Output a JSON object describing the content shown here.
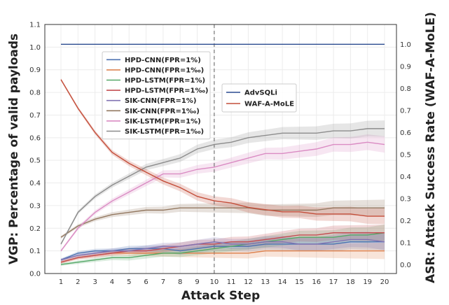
{
  "chart_data": {
    "type": "line",
    "xlabel": "Attack Step",
    "ylabel_left": "VGP: Percentage of valid payloads",
    "ylabel_right": "ASR: Attack Success Rate (WAF-A-MoLE)",
    "x": [
      1,
      2,
      3,
      4,
      5,
      6,
      7,
      8,
      9,
      10,
      11,
      12,
      13,
      14,
      15,
      16,
      17,
      18,
      19,
      20
    ],
    "left_yticks": [
      "0.0",
      "0.1",
      "0.2",
      "0.3",
      "0.4",
      "0.5",
      "0.6",
      "0.7",
      "0.8",
      "0.9",
      "1.0",
      "1.1"
    ],
    "right_yticks": [
      "0.0",
      "0.1",
      "0.2",
      "0.3",
      "0.4",
      "0.5",
      "0.6",
      "0.7",
      "0.8",
      "0.9",
      "1.0"
    ],
    "ylim_left": [
      0,
      1.1
    ],
    "ylim_right": [
      -0.04,
      1.09
    ],
    "vline_x": 10,
    "grid": true,
    "legend_left_placement": "upper-left-center",
    "legend_right_placement": "upper-center",
    "series_left": [
      {
        "name": "HPD-CNN(FPR=1%)",
        "color": "#4c72b0",
        "values": [
          0.06,
          0.09,
          0.1,
          0.1,
          0.11,
          0.11,
          0.11,
          0.1,
          0.11,
          0.12,
          0.12,
          0.12,
          0.13,
          0.13,
          0.13,
          0.13,
          0.13,
          0.14,
          0.14,
          0.14
        ]
      },
      {
        "name": "HPD-CNN(FPR=1‰)",
        "color": "#dd8452",
        "values": [
          0.05,
          0.07,
          0.08,
          0.09,
          0.09,
          0.09,
          0.09,
          0.09,
          0.09,
          0.09,
          0.09,
          0.09,
          0.1,
          0.1,
          0.1,
          0.1,
          0.1,
          0.1,
          0.1,
          0.1
        ]
      },
      {
        "name": "HPD-LSTM(FPR=1%)",
        "color": "#55a868",
        "values": [
          0.04,
          0.05,
          0.06,
          0.07,
          0.07,
          0.08,
          0.09,
          0.09,
          0.1,
          0.11,
          0.12,
          0.13,
          0.14,
          0.15,
          0.16,
          0.16,
          0.16,
          0.17,
          0.17,
          0.18
        ]
      },
      {
        "name": "HPD-LSTM(FPR=1‰)",
        "color": "#c44e52",
        "values": [
          0.05,
          0.07,
          0.08,
          0.09,
          0.1,
          0.1,
          0.11,
          0.12,
          0.13,
          0.13,
          0.14,
          0.14,
          0.15,
          0.16,
          0.17,
          0.17,
          0.18,
          0.18,
          0.18,
          0.18
        ]
      },
      {
        "name": "SIK-CNN(FPR=1%)",
        "color": "#8172b2",
        "values": [
          0.06,
          0.08,
          0.09,
          0.1,
          0.1,
          0.11,
          0.12,
          0.12,
          0.13,
          0.14,
          0.13,
          0.13,
          0.14,
          0.14,
          0.13,
          0.13,
          0.14,
          0.15,
          0.15,
          0.14
        ]
      },
      {
        "name": "SIK-CNN(FPR=1‰)",
        "color": "#937860",
        "values": [
          0.16,
          0.21,
          0.24,
          0.26,
          0.27,
          0.28,
          0.28,
          0.29,
          0.29,
          0.29,
          0.29,
          0.29,
          0.28,
          0.28,
          0.28,
          0.28,
          0.29,
          0.29,
          0.29,
          0.29
        ]
      },
      {
        "name": "SIK-LSTM(FPR=1%)",
        "color": "#da8bc3",
        "values": [
          0.1,
          0.2,
          0.27,
          0.32,
          0.36,
          0.4,
          0.44,
          0.44,
          0.46,
          0.47,
          0.49,
          0.51,
          0.53,
          0.53,
          0.54,
          0.55,
          0.57,
          0.57,
          0.58,
          0.57
        ]
      },
      {
        "name": "SIK-LSTM(FPR=1‰)",
        "color": "#8c8c8c",
        "values": [
          0.13,
          0.27,
          0.34,
          0.39,
          0.43,
          0.47,
          0.49,
          0.51,
          0.55,
          0.57,
          0.58,
          0.6,
          0.61,
          0.62,
          0.62,
          0.62,
          0.63,
          0.63,
          0.64,
          0.64
        ]
      }
    ],
    "series_right": [
      {
        "name": "AdvSQLi",
        "color": "#2a4a8f",
        "values": [
          1.0,
          1.0,
          1.0,
          1.0,
          1.0,
          1.0,
          1.0,
          1.0,
          1.0,
          1.0,
          1.0,
          1.0,
          1.0,
          1.0,
          1.0,
          1.0,
          1.0,
          1.0,
          1.0,
          1.0
        ]
      },
      {
        "name": "WAF-A-MoLE",
        "color": "#c44e3a",
        "values": [
          0.84,
          0.71,
          0.6,
          0.51,
          0.46,
          0.42,
          0.38,
          0.35,
          0.31,
          0.29,
          0.28,
          0.26,
          0.25,
          0.24,
          0.24,
          0.23,
          0.23,
          0.23,
          0.22,
          0.22
        ]
      }
    ]
  }
}
